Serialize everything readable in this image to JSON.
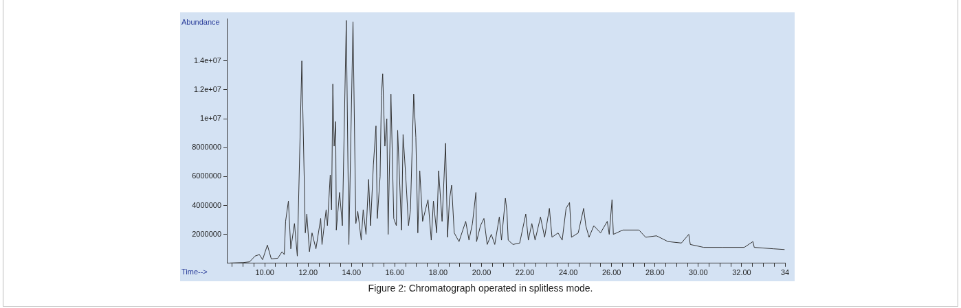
{
  "chart_data": {
    "type": "line",
    "xlabel": "Time-->",
    "ylabel": "Abundance",
    "annotations": [
      "Figure 2: Chromatograph operated in splitless mode."
    ],
    "x": [
      8.4,
      9.0,
      9.3,
      9.55,
      9.75,
      9.9,
      10.12,
      10.3,
      10.6,
      10.8,
      10.9,
      10.96,
      11.09,
      11.2,
      11.37,
      11.5,
      11.71,
      11.87,
      11.94,
      12.06,
      12.18,
      12.36,
      12.58,
      12.64,
      12.83,
      12.89,
      13.02,
      13.08,
      13.14,
      13.2,
      13.27,
      13.3,
      13.45,
      13.58,
      13.76,
      13.88,
      14.07,
      14.2,
      14.29,
      14.45,
      14.54,
      14.67,
      14.79,
      14.88,
      15.01,
      15.13,
      15.19,
      15.32,
      15.38,
      15.44,
      15.54,
      15.63,
      15.69,
      15.82,
      15.95,
      16.07,
      16.13,
      16.31,
      16.38,
      16.5,
      16.63,
      16.72,
      16.87,
      16.97,
      17.06,
      17.15,
      17.28,
      17.53,
      17.68,
      17.78,
      17.93,
      18.02,
      18.18,
      18.34,
      18.43,
      18.52,
      18.62,
      18.74,
      18.96,
      19.27,
      19.42,
      19.58,
      19.74,
      19.77,
      19.95,
      20.11,
      20.26,
      20.45,
      20.61,
      20.82,
      20.92,
      21.1,
      21.17,
      21.23,
      21.45,
      21.76,
      22.04,
      22.16,
      22.32,
      22.47,
      22.72,
      22.91,
      23.13,
      23.25,
      23.53,
      23.72,
      23.9,
      24.06,
      24.15,
      24.46,
      24.71,
      24.81,
      24.96,
      25.18,
      25.49,
      25.8,
      25.89,
      26.02,
      26.08,
      26.52,
      27.26,
      27.57,
      28.07,
      28.6,
      29.22,
      29.56,
      29.63,
      30.25,
      31.09,
      32.12,
      32.52,
      32.58,
      33.48,
      33.98
    ],
    "series": [
      {
        "color": "#333333",
        "values": [
          20000,
          50000,
          100000,
          500000,
          600000,
          250000,
          1260000,
          300000,
          350000,
          800000,
          600000,
          2900000,
          4300000,
          1000000,
          2750000,
          500000,
          14000000,
          2100000,
          3400000,
          800000,
          2100000,
          1000000,
          3100000,
          1300000,
          3700000,
          2600000,
          6100000,
          3700000,
          12400000,
          8100000,
          9800000,
          2300000,
          4900000,
          2600000,
          16800000,
          1300000,
          16700000,
          2750000,
          3600000,
          1600000,
          3700000,
          2000000,
          5800000,
          2600000,
          6800000,
          9500000,
          3100000,
          6000000,
          11600000,
          13100000,
          8100000,
          10000000,
          2000000,
          11700000,
          3100000,
          2600000,
          9200000,
          2300000,
          8900000,
          6100000,
          2600000,
          3700000,
          11700000,
          8700000,
          2100000,
          6400000,
          2900000,
          4400000,
          1600000,
          4300000,
          2100000,
          6400000,
          2900000,
          8300000,
          1800000,
          4400000,
          5400000,
          2100000,
          1500000,
          2900000,
          1600000,
          2750000,
          4900000,
          1500000,
          2600000,
          3100000,
          1300000,
          2000000,
          1300000,
          3200000,
          1600000,
          4500000,
          3600000,
          1600000,
          1300000,
          1400000,
          3400000,
          1600000,
          2750000,
          1600000,
          3200000,
          1800000,
          3800000,
          1800000,
          2100000,
          1600000,
          3800000,
          4200000,
          1800000,
          2100000,
          3800000,
          2600000,
          1800000,
          2600000,
          2100000,
          2900000,
          2000000,
          4400000,
          2000000,
          2300000,
          2300000,
          1800000,
          1900000,
          1500000,
          1400000,
          2000000,
          1300000,
          1100000,
          1100000,
          1100000,
          1500000,
          1100000,
          1000000,
          950000
        ]
      }
    ],
    "xlim": [
      8.25,
      34
    ],
    "xticks": [
      {
        "value": 8.5,
        "label": null
      },
      {
        "value": 9,
        "label": null
      },
      {
        "value": 9.5,
        "label": null
      },
      {
        "value": 10,
        "label": "10.00"
      },
      {
        "value": 10.5,
        "label": null
      },
      {
        "value": 11,
        "label": null
      },
      {
        "value": 11.5,
        "label": null
      },
      {
        "value": 12,
        "label": "12.00"
      },
      {
        "value": 12.5,
        "label": null
      },
      {
        "value": 13,
        "label": null
      },
      {
        "value": 13.5,
        "label": null
      },
      {
        "value": 14,
        "label": "14.00"
      },
      {
        "value": 14.5,
        "label": null
      },
      {
        "value": 15,
        "label": null
      },
      {
        "value": 15.5,
        "label": null
      },
      {
        "value": 16,
        "label": "16.00"
      },
      {
        "value": 16.5,
        "label": null
      },
      {
        "value": 17,
        "label": null
      },
      {
        "value": 17.5,
        "label": null
      },
      {
        "value": 18,
        "label": "18.00"
      },
      {
        "value": 18.5,
        "label": null
      },
      {
        "value": 19,
        "label": null
      },
      {
        "value": 19.5,
        "label": null
      },
      {
        "value": 20,
        "label": "20.00"
      },
      {
        "value": 20.5,
        "label": null
      },
      {
        "value": 21,
        "label": null
      },
      {
        "value": 21.5,
        "label": null
      },
      {
        "value": 22,
        "label": "22.00"
      },
      {
        "value": 22.5,
        "label": null
      },
      {
        "value": 23,
        "label": null
      },
      {
        "value": 23.5,
        "label": null
      },
      {
        "value": 24,
        "label": "24.00"
      },
      {
        "value": 24.5,
        "label": null
      },
      {
        "value": 25,
        "label": null
      },
      {
        "value": 25.5,
        "label": null
      },
      {
        "value": 26,
        "label": "26.00"
      },
      {
        "value": 26.5,
        "label": null
      },
      {
        "value": 27,
        "label": null
      },
      {
        "value": 27.5,
        "label": null
      },
      {
        "value": 28,
        "label": "28.00"
      },
      {
        "value": 28.5,
        "label": null
      },
      {
        "value": 29,
        "label": null
      },
      {
        "value": 29.5,
        "label": null
      },
      {
        "value": 30,
        "label": "30.00"
      },
      {
        "value": 30.5,
        "label": null
      },
      {
        "value": 31,
        "label": null
      },
      {
        "value": 31.5,
        "label": null
      },
      {
        "value": 32,
        "label": "32.00"
      },
      {
        "value": 32.5,
        "label": null
      },
      {
        "value": 33,
        "label": null
      },
      {
        "value": 33.5,
        "label": null
      },
      {
        "value": 34,
        "label": "34"
      }
    ],
    "ylim": [
      0,
      16900000
    ],
    "yticks": [
      2000000,
      4000000,
      6000000,
      8000000,
      {
        "value": 10000000,
        "label": "1e+07"
      },
      {
        "value": 12000000,
        "label": "1.2e+07"
      },
      {
        "value": 14000000,
        "label": "1.4e+07"
      }
    ],
    "marker": "none",
    "line_style": "solid",
    "legend": false
  }
}
